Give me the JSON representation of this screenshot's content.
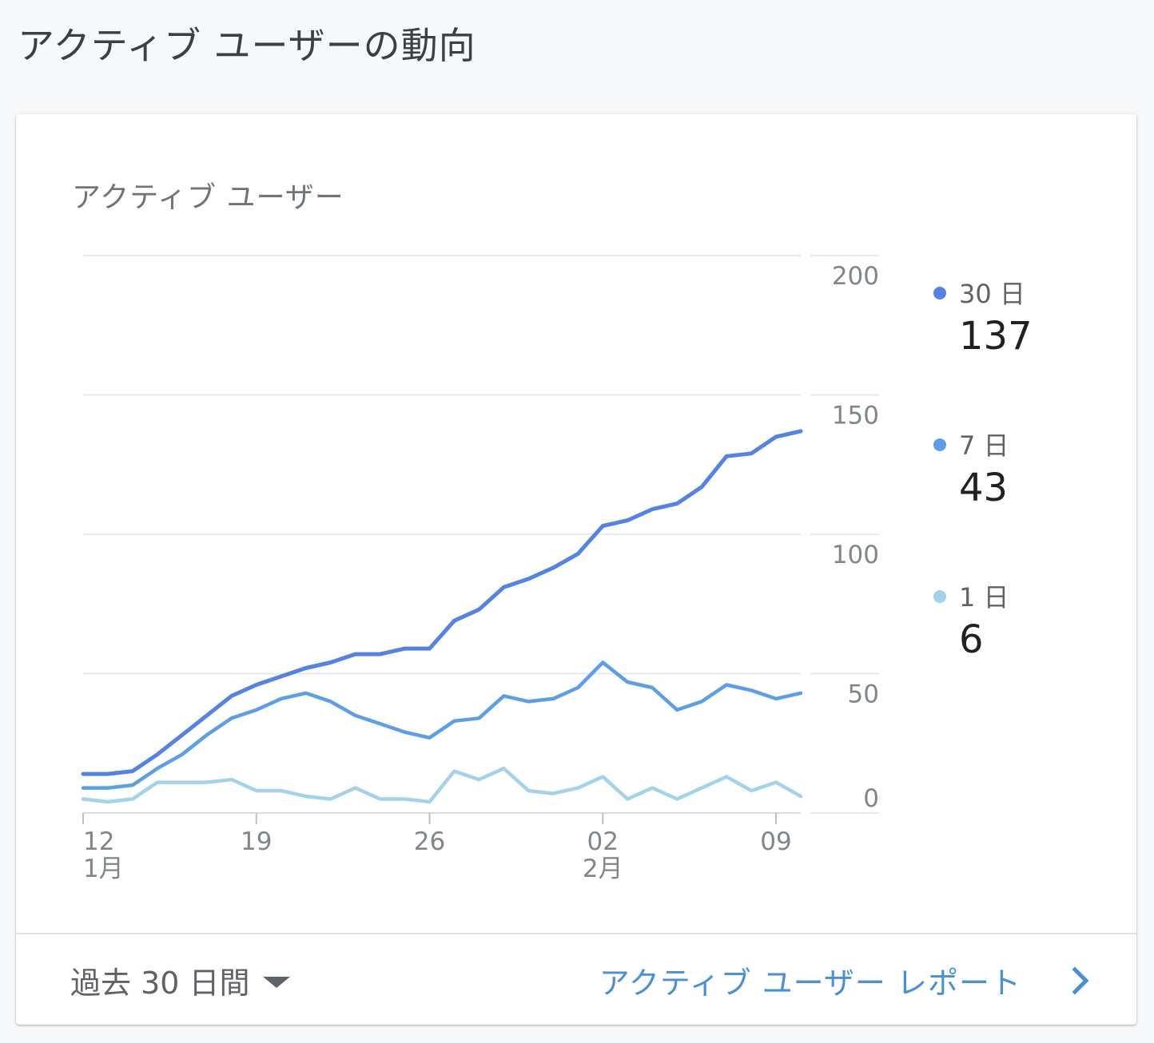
{
  "header": {
    "title": "アクティブ ユーザーの動向"
  },
  "card": {
    "chart_title": "アクティブ ユーザー",
    "legend": [
      {
        "label": "30 日",
        "value": "137",
        "color": "#5383e6"
      },
      {
        "label": "7 日",
        "value": "43",
        "color": "#5c9fe8"
      },
      {
        "label": "1 日",
        "value": "6",
        "color": "#a3d2ea"
      }
    ],
    "footer": {
      "range_label": "過去 30 日間",
      "report_link": "アクティブ ユーザー レポート"
    }
  },
  "chart_data": {
    "type": "line",
    "title": "アクティブ ユーザー",
    "xlabel": "",
    "ylabel": "",
    "ylim": [
      0,
      200
    ],
    "y_ticks": [
      "0",
      "50",
      "100",
      "150",
      "200"
    ],
    "grid": true,
    "legend_position": "right",
    "x": [
      "1/12",
      "1/13",
      "1/14",
      "1/15",
      "1/16",
      "1/17",
      "1/18",
      "1/19",
      "1/20",
      "1/21",
      "1/22",
      "1/23",
      "1/24",
      "1/25",
      "1/26",
      "1/27",
      "1/28",
      "1/29",
      "1/30",
      "1/31",
      "2/01",
      "2/02",
      "2/03",
      "2/04",
      "2/05",
      "2/06",
      "2/07",
      "2/08",
      "2/09",
      "2/10"
    ],
    "x_tick_labels": [
      {
        "label": "12",
        "sublabel": "1月",
        "index": 0
      },
      {
        "label": "19",
        "sublabel": "",
        "index": 7
      },
      {
        "label": "26",
        "sublabel": "",
        "index": 14
      },
      {
        "label": "02",
        "sublabel": "2月",
        "index": 21
      },
      {
        "label": "09",
        "sublabel": "",
        "index": 28
      }
    ],
    "series": [
      {
        "name": "30 日",
        "color": "#5383e6",
        "values": [
          14,
          14,
          15,
          21,
          28,
          35,
          42,
          46,
          49,
          52,
          54,
          57,
          57,
          59,
          59,
          69,
          73,
          81,
          84,
          88,
          93,
          103,
          105,
          109,
          111,
          117,
          128,
          129,
          135,
          137
        ]
      },
      {
        "name": "7 日",
        "color": "#5c9fe8",
        "values": [
          9,
          9,
          10,
          16,
          21,
          28,
          34,
          37,
          41,
          43,
          40,
          35,
          32,
          29,
          27,
          33,
          34,
          42,
          40,
          41,
          45,
          54,
          47,
          45,
          37,
          40,
          46,
          44,
          41,
          43
        ]
      },
      {
        "name": "1 日",
        "color": "#a3d2ea",
        "values": [
          5,
          4,
          5,
          11,
          11,
          11,
          12,
          8,
          8,
          6,
          5,
          9,
          5,
          5,
          4,
          15,
          12,
          16,
          8,
          7,
          9,
          13,
          5,
          9,
          5,
          9,
          13,
          8,
          11,
          6
        ]
      }
    ]
  }
}
